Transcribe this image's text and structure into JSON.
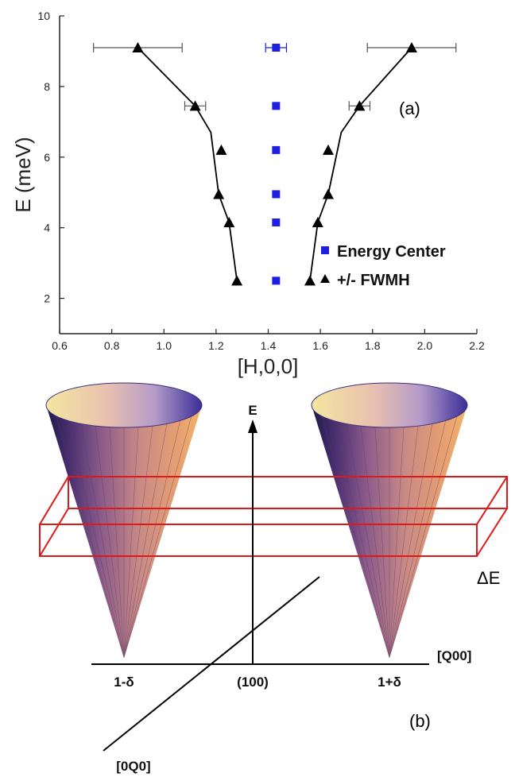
{
  "chart_data": {
    "type": "scatter",
    "panel_label": "(a)",
    "xlabel": "[H,0,0]",
    "ylabel": "E (meV)",
    "xlim": [
      0.6,
      2.2
    ],
    "ylim": [
      1,
      10
    ],
    "x_ticks": [
      "0.6",
      "0.8",
      "1.0",
      "1.2",
      "1.4",
      "1.6",
      "1.8",
      "2.0",
      "2.2"
    ],
    "y_ticks": [
      "2",
      "4",
      "6",
      "8",
      "10"
    ],
    "series": [
      {
        "name": "Energy Center",
        "marker": "square",
        "color": "#1f1fe0",
        "points": [
          {
            "x": 1.43,
            "y": 9.1,
            "xerr": 0.04
          },
          {
            "x": 1.43,
            "y": 7.45
          },
          {
            "x": 1.43,
            "y": 6.2
          },
          {
            "x": 1.43,
            "y": 4.95
          },
          {
            "x": 1.43,
            "y": 4.15
          },
          {
            "x": 1.43,
            "y": 2.5
          }
        ]
      },
      {
        "name": "+/- FWMH",
        "marker": "triangle",
        "color": "#000000",
        "points": [
          {
            "x": 0.9,
            "y": 9.1,
            "xerr": 0.17
          },
          {
            "x": 1.12,
            "y": 7.45,
            "xerr": 0.04
          },
          {
            "x": 1.22,
            "y": 6.2
          },
          {
            "x": 1.21,
            "y": 4.95
          },
          {
            "x": 1.25,
            "y": 4.15
          },
          {
            "x": 1.28,
            "y": 2.5
          },
          {
            "x": 1.95,
            "y": 9.1,
            "xerr": 0.17
          },
          {
            "x": 1.75,
            "y": 7.45,
            "xerr": 0.04
          },
          {
            "x": 1.63,
            "y": 6.2
          },
          {
            "x": 1.63,
            "y": 4.95
          },
          {
            "x": 1.59,
            "y": 4.15
          },
          {
            "x": 1.56,
            "y": 2.5
          }
        ],
        "lines": [
          [
            [
              1.28,
              2.5
            ],
            [
              1.25,
              4.15
            ],
            [
              1.21,
              4.95
            ],
            [
              1.18,
              6.7
            ],
            [
              1.12,
              7.45
            ],
            [
              0.9,
              9.1
            ]
          ],
          [
            [
              1.56,
              2.5
            ],
            [
              1.59,
              4.15
            ],
            [
              1.63,
              4.95
            ],
            [
              1.68,
              6.7
            ],
            [
              1.75,
              7.45
            ],
            [
              1.95,
              9.1
            ]
          ]
        ]
      }
    ],
    "legend_position": "lower-right"
  },
  "diagram": {
    "panel_label": "(b)",
    "energy_axis_label": "E",
    "delta_e_label": "ΔE",
    "q00_label": "[Q00]",
    "zeroq0_label": "[0Q0]",
    "center_label": "(100)",
    "left_cone_label": "1-δ",
    "right_cone_label": "1+δ"
  }
}
